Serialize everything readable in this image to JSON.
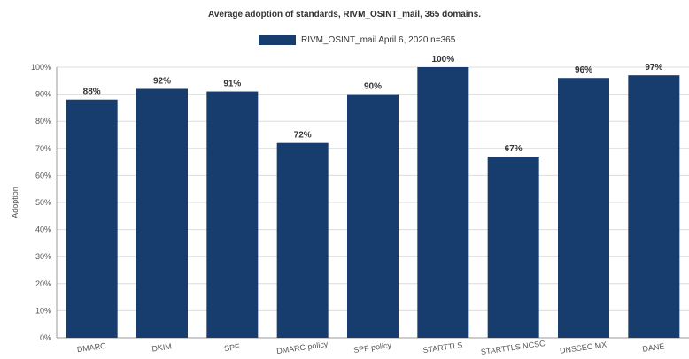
{
  "chart_data": {
    "type": "bar",
    "title": "Average adoption of standards, RIVM_OSINT_mail, 365 domains.",
    "ylabel": "Adoption",
    "xlabel": "",
    "ylim": [
      0,
      100
    ],
    "yticks": [
      "0%",
      "10%",
      "20%",
      "30%",
      "40%",
      "50%",
      "60%",
      "70%",
      "80%",
      "90%",
      "100%"
    ],
    "categories": [
      "DMARC",
      "DKIM",
      "SPF",
      "DMARC policy",
      "SPF policy",
      "STARTTLS",
      "STARTTLS NCSC",
      "DNSSEC MX",
      "DANE"
    ],
    "series": [
      {
        "name": "RIVM_OSINT_mail April 6, 2020 n=365",
        "values": [
          88,
          92,
          91,
          72,
          90,
          100,
          67,
          96,
          97
        ],
        "labels": [
          "88%",
          "92%",
          "91%",
          "72%",
          "90%",
          "100%",
          "67%",
          "96%",
          "97%"
        ]
      }
    ],
    "colors": {
      "bar": "#173c6e",
      "grid": "#dcdcdc",
      "axis": "#999999"
    },
    "grid": true,
    "legend_position": "top-center"
  }
}
